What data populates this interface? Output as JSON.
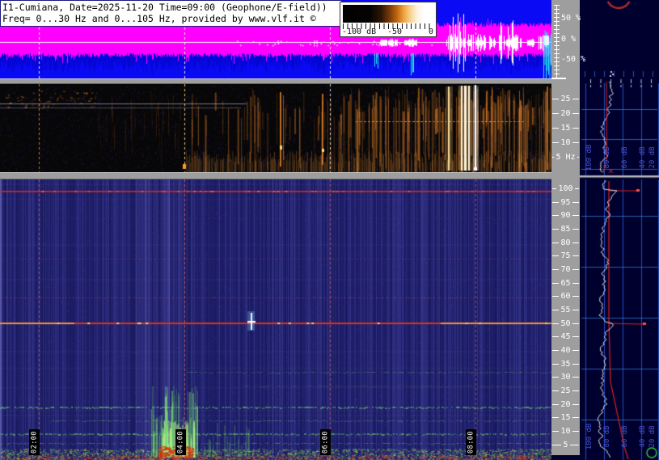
{
  "station": {
    "title_line1": "I1-Cumiana, Date=2025-11-20 Time=09:00 (Geophone/E-field))",
    "title_line2": "Freq= 0...30 Hz and 0...105 Hz, provided by www.vlf.it ©"
  },
  "colorbar": {
    "label_min": "-100 dB",
    "label_mid": "-50",
    "label_max": "0"
  },
  "amplitude_scale": {
    "labels": [
      "50 %",
      "0 %",
      "-50 %"
    ]
  },
  "geophone_scale": {
    "labels": [
      "25",
      "20",
      "15",
      "10",
      "5 Hz"
    ]
  },
  "efield_scale": {
    "labels": [
      "100",
      "95",
      "90",
      "85",
      "80",
      "75",
      "70",
      "65",
      "60",
      "55",
      "50",
      "45",
      "40",
      "35",
      "30",
      "25",
      "20",
      "15",
      "10",
      "5"
    ]
  },
  "timeline": {
    "labels": [
      "02:00",
      "04:00",
      "06:00",
      "08:00"
    ]
  },
  "spectrum_panels": {
    "db_labels": [
      "100 dB",
      "80 dB",
      "60 dB",
      "40 dB",
      "20 dB"
    ]
  },
  "colors": {
    "waveform_bg": "#0a0af5",
    "magenta": "#ff00ff",
    "spectro_bg": "#1d1d68",
    "panel_bg": "#00002e",
    "gray": "#9e9e9e",
    "red_line": "#e23018",
    "orange": "#ff9228",
    "grid_blue": "#2a5cd2",
    "db_label_blue": "#4654d2",
    "green": "#38c838"
  }
}
